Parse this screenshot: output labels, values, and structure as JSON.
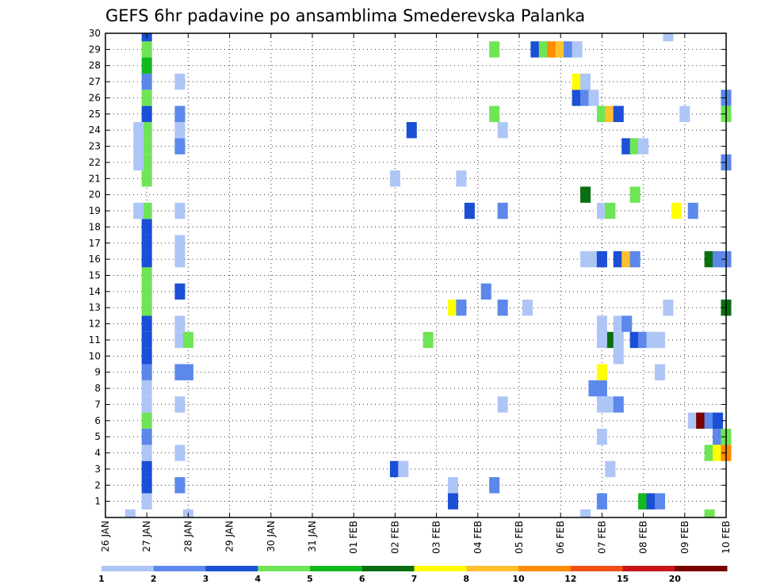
{
  "chart_data": {
    "type": "heatmap",
    "title": "GEFS 6hr padavine po ansamblima Smederevska Palanka",
    "xlabel": "",
    "ylabel": "",
    "x_ticks": [
      "26 JAN",
      "27 JAN",
      "28 JAN",
      "29 JAN",
      "30 JAN",
      "31 JAN",
      "01 FEB",
      "02 FEB",
      "03 FEB",
      "04 FEB",
      "05 FEB",
      "06 FEB",
      "07 FEB",
      "08 FEB",
      "09 FEB",
      "10 FEB"
    ],
    "y_ticks": [
      "1",
      "2",
      "3",
      "4",
      "5",
      "6",
      "7",
      "8",
      "9",
      "10",
      "11",
      "12",
      "13",
      "14",
      "15",
      "16",
      "17",
      "18",
      "19",
      "20",
      "21",
      "22",
      "23",
      "24",
      "25",
      "26",
      "27",
      "28",
      "29",
      "30"
    ],
    "x_range_days": [
      0,
      15
    ],
    "y_range": [
      0,
      30
    ],
    "grid": true,
    "time_step_days": 0.25,
    "colorbar": {
      "labels": [
        "1",
        "2",
        "3",
        "4",
        "5",
        "6",
        "7",
        "8",
        "10",
        "12",
        "15",
        "20"
      ],
      "colors": [
        "#aec6f6",
        "#5b88ea",
        "#1a4fd6",
        "#6ee554",
        "#12b81e",
        "#0a6e12",
        "#ffff00",
        "#ffc02e",
        "#ff8c00",
        "#f05018",
        "#c81414",
        "#7a0000"
      ]
    },
    "cells": [
      [
        0.6,
        1,
        0
      ],
      [
        2,
        1,
        0
      ],
      [
        11.6,
        1,
        0
      ],
      [
        11.8,
        2,
        8
      ],
      [
        12,
        2,
        8
      ],
      [
        1,
        1,
        1
      ],
      [
        1,
        3,
        2
      ],
      [
        1,
        3,
        3
      ],
      [
        1,
        1,
        4
      ],
      [
        1,
        2,
        5
      ],
      [
        1,
        4,
        6
      ],
      [
        1,
        1,
        7
      ],
      [
        1,
        1,
        8
      ],
      [
        1,
        2,
        9
      ],
      [
        1,
        3,
        10
      ],
      [
        1,
        3,
        11
      ],
      [
        1,
        3,
        12
      ],
      [
        1,
        4,
        13
      ],
      [
        1,
        4,
        14
      ],
      [
        1,
        4,
        15
      ],
      [
        1,
        3,
        16
      ],
      [
        1,
        3,
        17
      ],
      [
        1,
        3,
        18
      ],
      [
        1,
        4,
        19
      ],
      [
        1,
        4,
        21
      ],
      [
        1,
        4,
        22
      ],
      [
        1,
        4,
        23
      ],
      [
        1,
        4,
        24
      ],
      [
        1,
        3,
        25
      ],
      [
        1,
        4,
        26
      ],
      [
        1,
        2,
        27
      ],
      [
        1,
        5,
        28
      ],
      [
        1,
        4,
        29
      ],
      [
        1,
        3,
        30
      ],
      [
        0.8,
        1,
        19
      ],
      [
        0.8,
        1,
        22
      ],
      [
        0.8,
        1,
        23
      ],
      [
        0.8,
        1,
        24
      ],
      [
        1.8,
        2,
        2
      ],
      [
        1.8,
        1,
        4
      ],
      [
        1.8,
        1,
        7
      ],
      [
        1.8,
        2,
        9
      ],
      [
        2,
        2,
        9
      ],
      [
        1.8,
        1,
        11
      ],
      [
        2,
        4,
        11
      ],
      [
        1.8,
        1,
        12
      ],
      [
        1.8,
        3,
        14
      ],
      [
        1.8,
        1,
        16
      ],
      [
        1.8,
        1,
        17
      ],
      [
        1.8,
        1,
        19
      ],
      [
        1.8,
        2,
        23
      ],
      [
        1.8,
        1,
        24
      ],
      [
        1.8,
        2,
        25
      ],
      [
        1.8,
        1,
        27
      ],
      [
        7,
        3,
        3
      ],
      [
        7.2,
        1,
        3
      ],
      [
        7,
        1,
        21
      ],
      [
        7.4,
        3,
        24
      ],
      [
        7.8,
        4,
        11
      ],
      [
        8.4,
        1,
        2
      ],
      [
        8.4,
        3,
        1
      ],
      [
        8.4,
        7,
        13
      ],
      [
        8.6,
        2,
        13
      ],
      [
        8.6,
        1,
        21
      ],
      [
        8.8,
        3,
        19
      ],
      [
        9.2,
        2,
        14
      ],
      [
        9.4,
        4,
        25
      ],
      [
        9.4,
        2,
        2
      ],
      [
        9.6,
        1,
        24
      ],
      [
        9.4,
        4,
        29
      ],
      [
        9.6,
        1,
        7
      ],
      [
        9.6,
        2,
        13
      ],
      [
        9.6,
        2,
        19
      ],
      [
        10.2,
        1,
        13
      ],
      [
        10.4,
        3,
        29
      ],
      [
        10.6,
        4,
        29
      ],
      [
        10.8,
        9,
        29
      ],
      [
        11,
        8,
        29
      ],
      [
        11.2,
        2,
        29
      ],
      [
        11.4,
        1,
        29
      ],
      [
        11.4,
        3,
        26
      ],
      [
        11.6,
        2,
        26
      ],
      [
        11.8,
        1,
        26
      ],
      [
        11.4,
        7,
        27
      ],
      [
        11.6,
        1,
        27
      ],
      [
        11.6,
        6,
        20
      ],
      [
        11.6,
        1,
        16
      ],
      [
        11.8,
        1,
        16
      ],
      [
        12,
        3,
        16
      ],
      [
        12,
        1,
        12
      ],
      [
        12,
        2,
        1
      ],
      [
        12,
        1,
        5
      ],
      [
        12,
        1,
        7
      ],
      [
        12.2,
        1,
        7
      ],
      [
        12.2,
        1,
        3
      ],
      [
        12,
        7,
        9
      ],
      [
        12,
        4,
        25
      ],
      [
        12.2,
        8,
        25
      ],
      [
        12.4,
        3,
        25
      ],
      [
        12,
        1,
        19
      ],
      [
        12.2,
        4,
        19
      ],
      [
        12.2,
        6,
        11
      ],
      [
        12.4,
        1,
        11
      ],
      [
        12,
        1,
        11
      ],
      [
        12.4,
        1,
        12
      ],
      [
        12.6,
        2,
        12
      ],
      [
        12.4,
        2,
        7
      ],
      [
        12.4,
        1,
        10
      ],
      [
        12.4,
        3,
        16
      ],
      [
        12.6,
        8,
        16
      ],
      [
        12.8,
        2,
        16
      ],
      [
        12.6,
        3,
        23
      ],
      [
        12.8,
        4,
        23
      ],
      [
        13,
        1,
        23
      ],
      [
        12.8,
        4,
        20
      ],
      [
        12.8,
        3,
        11
      ],
      [
        13,
        2,
        11
      ],
      [
        13.2,
        1,
        11
      ],
      [
        13.4,
        1,
        11
      ],
      [
        13.4,
        1,
        9
      ],
      [
        13,
        5,
        1
      ],
      [
        13.2,
        3,
        1
      ],
      [
        13.4,
        2,
        1
      ],
      [
        13.6,
        1,
        30
      ],
      [
        13.6,
        1,
        13
      ],
      [
        14,
        1,
        25
      ],
      [
        13.8,
        7,
        19
      ],
      [
        14.2,
        2,
        19
      ],
      [
        14.2,
        1,
        6
      ],
      [
        14.4,
        12,
        6
      ],
      [
        14.6,
        2,
        6
      ],
      [
        14.8,
        3,
        6
      ],
      [
        14.8,
        2,
        5
      ],
      [
        15,
        4,
        5
      ],
      [
        14.6,
        4,
        4
      ],
      [
        14.8,
        7,
        4
      ],
      [
        15,
        9,
        4
      ],
      [
        14.6,
        6,
        16
      ],
      [
        14.8,
        2,
        16
      ],
      [
        15,
        2,
        16
      ],
      [
        15,
        6,
        13
      ],
      [
        15,
        2,
        26
      ],
      [
        15,
        2,
        22
      ],
      [
        15,
        4,
        25
      ],
      [
        14.6,
        4,
        0
      ]
    ]
  }
}
